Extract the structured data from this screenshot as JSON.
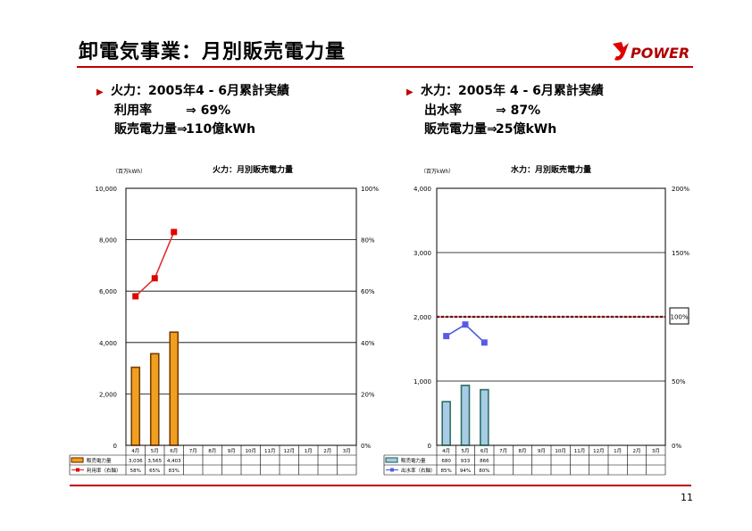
{
  "header": {
    "title": "卸電気事業：月別販売電力量",
    "logo_text": "POWER",
    "page_number": "11"
  },
  "summaries": [
    {
      "heading": "火力：2005年4 - 6月累計実績",
      "line1_label": "利用率",
      "line1_value": "⇒ 69%",
      "line2_label": "販売電力量⇒",
      "line2_value": "110億kWh"
    },
    {
      "heading": "水力：2005年 4 - 6月累計実績",
      "line1_label": "出水率",
      "line1_value": "⇒ 87%",
      "line2_label": "販売電力量⇒",
      "line2_value": "25億kWh"
    }
  ],
  "chart_data": [
    {
      "type": "bar",
      "title": "火力：月別販売電力量",
      "unit_label": "（百万kWh）",
      "categories": [
        "4月",
        "5月",
        "6月",
        "7月",
        "8月",
        "9月",
        "10月",
        "11月",
        "12月",
        "1月",
        "2月",
        "3月"
      ],
      "ylim": [
        0,
        10000
      ],
      "y_ticks": [
        "0",
        "2,000",
        "4,000",
        "6,000",
        "8,000",
        "10,000"
      ],
      "y2lim": [
        0,
        100
      ],
      "y2_ticks": [
        "0%",
        "20%",
        "40%",
        "60%",
        "80%",
        "100%"
      ],
      "series": [
        {
          "name": "販売電力量",
          "kind": "bar",
          "values": [
            3036,
            3565,
            4403,
            null,
            null,
            null,
            null,
            null,
            null,
            null,
            null,
            null
          ],
          "labels": [
            "3,036",
            "3,565",
            "4,403",
            "",
            "",
            "",
            "",
            "",
            "",
            "",
            "",
            ""
          ]
        },
        {
          "name": "利用率（右軸）",
          "kind": "line",
          "axis": "right",
          "values": [
            58,
            65,
            83,
            null,
            null,
            null,
            null,
            null,
            null,
            null,
            null,
            null
          ],
          "labels": [
            "58%",
            "65%",
            "83%",
            "",
            "",
            "",
            "",
            "",
            "",
            "",
            "",
            ""
          ]
        }
      ],
      "colors": {
        "bar": "#f0a020",
        "bar_edge": "#7a3c00",
        "line": "#e03030",
        "marker": "#e00000"
      },
      "grid": true
    },
    {
      "type": "bar",
      "title": "水力：月別販売電力量",
      "unit_label": "（百万kWh）",
      "categories": [
        "4月",
        "5月",
        "6月",
        "7月",
        "8月",
        "9月",
        "10月",
        "11月",
        "12月",
        "1月",
        "2月",
        "3月"
      ],
      "ylim": [
        0,
        4000
      ],
      "y_ticks": [
        "0",
        "1,000",
        "2,000",
        "3,000",
        "4,000"
      ],
      "y2lim": [
        0,
        200
      ],
      "y2_ticks": [
        "0%",
        "50%",
        "100%",
        "150%",
        "200%"
      ],
      "reference_line": {
        "value": 100,
        "label": "100%"
      },
      "series": [
        {
          "name": "販売電力量",
          "kind": "bar",
          "values": [
            680,
            933,
            866,
            null,
            null,
            null,
            null,
            null,
            null,
            null,
            null,
            null
          ],
          "labels": [
            "680",
            "933",
            "866",
            "",
            "",
            "",
            "",
            "",
            "",
            "",
            "",
            ""
          ]
        },
        {
          "name": "出水率（右軸）",
          "kind": "line",
          "axis": "right",
          "values": [
            85,
            94,
            80,
            null,
            null,
            null,
            null,
            null,
            null,
            null,
            null,
            null
          ],
          "labels": [
            "85%",
            "94%",
            "80%",
            "",
            "",
            "",
            "",
            "",
            "",
            "",
            "",
            ""
          ]
        }
      ],
      "colors": {
        "bar": "#a8cce8",
        "bar_edge": "#2e7060",
        "line": "#4a5ed8",
        "marker": "#5a5ae8",
        "reference": "#800000"
      },
      "grid": true
    }
  ]
}
